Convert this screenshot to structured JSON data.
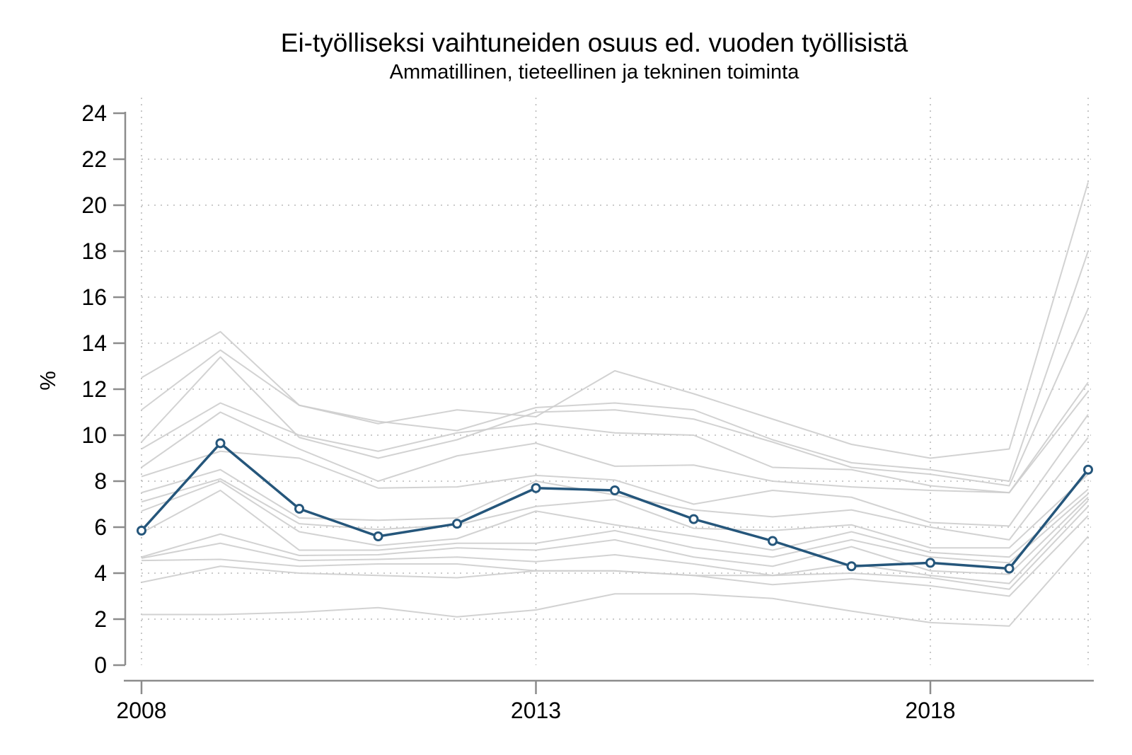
{
  "chart_data": {
    "type": "line",
    "title": "Ei-työlliseksi vaihtuneiden osuus ed. vuoden työllisistä",
    "subtitle": "Ammatillinen, tieteellinen ja tekninen toiminta",
    "ylabel": "%",
    "xlabel": "",
    "x": [
      2008,
      2009,
      2010,
      2011,
      2012,
      2013,
      2014,
      2015,
      2016,
      2017,
      2018,
      2019,
      2020
    ],
    "xticks": [
      2008,
      2013,
      2018
    ],
    "yticks": [
      0,
      2,
      4,
      6,
      8,
      10,
      12,
      14,
      16,
      18,
      20,
      22,
      24
    ],
    "xlim": [
      2008,
      2020
    ],
    "ylim": [
      0,
      24
    ],
    "grid": "dotted gridlines: horizontal at 2..22, vertical at 2008, 2013, 2018, 2020",
    "legend": "none",
    "colors": {
      "main_line": "#25567b",
      "marker_fill": "#ffffff",
      "background_lines": "#cdcdcd",
      "gridline": "#bababa",
      "axis": "#8c8c8c",
      "text": "#000000"
    },
    "series": [
      {
        "name": "main",
        "role": "highlighted-series",
        "values": [
          5.85,
          9.65,
          6.8,
          5.6,
          6.15,
          7.7,
          7.6,
          6.35,
          5.4,
          4.3,
          4.45,
          4.2,
          8.5
        ]
      },
      {
        "name": "background-1",
        "role": "context-series",
        "values": [
          12.5,
          14.5,
          11.3,
          10.5,
          11.1,
          10.8,
          12.8,
          11.8,
          10.7,
          9.6,
          9.0,
          9.4,
          21.0
        ]
      },
      {
        "name": "background-2",
        "role": "context-series",
        "values": [
          11.1,
          13.7,
          11.3,
          10.6,
          10.2,
          11.2,
          11.4,
          11.1,
          9.8,
          8.8,
          8.5,
          8.0,
          18.0
        ]
      },
      {
        "name": "background-3",
        "role": "context-series",
        "values": [
          9.7,
          13.4,
          9.9,
          9.0,
          9.8,
          11.0,
          11.1,
          10.7,
          9.7,
          8.6,
          8.3,
          7.8,
          15.5
        ]
      },
      {
        "name": "background-4",
        "role": "context-series",
        "values": [
          9.4,
          11.4,
          10.0,
          9.3,
          10.1,
          10.5,
          10.1,
          10.0,
          8.6,
          8.5,
          7.8,
          7.5,
          12.3
        ]
      },
      {
        "name": "background-5",
        "role": "context-series",
        "values": [
          8.6,
          11.0,
          9.4,
          8.0,
          9.1,
          9.65,
          8.65,
          8.7,
          8.0,
          7.75,
          7.6,
          7.5,
          11.9
        ]
      },
      {
        "name": "background-6",
        "role": "context-series",
        "values": [
          8.2,
          9.3,
          9.0,
          7.7,
          7.75,
          8.25,
          8.05,
          7.0,
          7.6,
          7.3,
          6.2,
          6.05,
          10.9
        ]
      },
      {
        "name": "background-7",
        "role": "context-series",
        "values": [
          7.5,
          8.5,
          6.4,
          6.3,
          6.4,
          8.0,
          7.4,
          6.75,
          6.45,
          6.75,
          6.0,
          5.45,
          9.9
        ]
      },
      {
        "name": "background-8",
        "role": "context-series",
        "values": [
          7.1,
          8.1,
          6.15,
          5.9,
          6.1,
          6.9,
          7.2,
          5.95,
          5.85,
          6.1,
          5.1,
          5.1,
          8.3
        ]
      },
      {
        "name": "background-9",
        "role": "context-series",
        "values": [
          6.7,
          8.0,
          5.8,
          5.2,
          5.5,
          6.7,
          6.1,
          5.6,
          5.0,
          5.8,
          4.9,
          4.7,
          7.65
        ]
      },
      {
        "name": "background-10",
        "role": "context-series",
        "values": [
          5.75,
          7.6,
          5.0,
          5.0,
          5.3,
          5.3,
          5.85,
          5.1,
          4.7,
          5.45,
          4.7,
          4.45,
          7.45
        ]
      },
      {
        "name": "background-11",
        "role": "context-series",
        "values": [
          4.7,
          5.7,
          4.77,
          4.8,
          5.1,
          5.0,
          5.45,
          4.7,
          4.3,
          5.15,
          4.1,
          3.95,
          7.3
        ]
      },
      {
        "name": "background-12",
        "role": "context-series",
        "values": [
          4.65,
          5.3,
          4.55,
          4.6,
          4.7,
          4.5,
          4.8,
          4.4,
          3.9,
          4.4,
          3.9,
          3.55,
          7.15
        ]
      },
      {
        "name": "background-13",
        "role": "context-series",
        "values": [
          4.55,
          4.6,
          4.3,
          4.4,
          4.4,
          4.1,
          4.1,
          3.9,
          3.9,
          4.0,
          3.8,
          3.3,
          6.9
        ]
      },
      {
        "name": "background-14",
        "role": "context-series",
        "values": [
          3.6,
          4.3,
          4.0,
          3.9,
          3.8,
          4.1,
          4.1,
          3.9,
          3.5,
          3.75,
          3.45,
          3.0,
          6.5
        ]
      },
      {
        "name": "background-15",
        "role": "context-series",
        "values": [
          2.2,
          2.2,
          2.3,
          2.5,
          2.1,
          2.4,
          3.1,
          3.1,
          2.9,
          2.35,
          1.85,
          1.7,
          5.6
        ]
      }
    ]
  }
}
